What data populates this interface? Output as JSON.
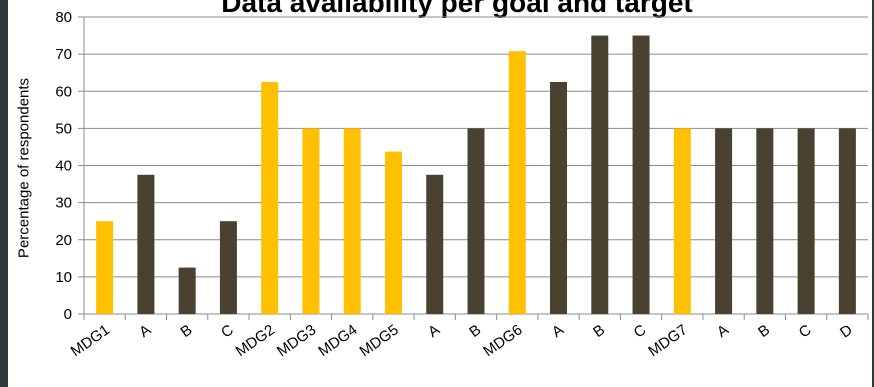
{
  "chart_data": {
    "type": "bar",
    "title": "Data availability per goal and target",
    "xlabel": "",
    "ylabel": "Percentage of respondents",
    "ylim": [
      0,
      80
    ],
    "yticks": [
      0,
      10,
      20,
      30,
      40,
      50,
      60,
      70,
      80
    ],
    "grid": true,
    "legend": "none",
    "categories": [
      "MDG1",
      "A",
      "B",
      "C",
      "MDG2",
      "MDG3",
      "MDG4",
      "MDG5",
      "A",
      "B",
      "MDG6",
      "A",
      "B",
      "C",
      "MDG7",
      "A",
      "B",
      "C",
      "D"
    ],
    "values": [
      25,
      37.5,
      12.5,
      25,
      62.5,
      50,
      50,
      43.75,
      37.5,
      50,
      70.8,
      62.5,
      75,
      75,
      50,
      50,
      50,
      50,
      50
    ],
    "bar_kinds": [
      "goal",
      "target",
      "target",
      "target",
      "goal",
      "goal",
      "goal",
      "goal",
      "target",
      "target",
      "goal",
      "target",
      "target",
      "target",
      "goal",
      "target",
      "target",
      "target",
      "target"
    ],
    "colors": {
      "goal": "#ffc000",
      "target": "#4a4230",
      "grid": "#8c8c8c",
      "axis": "#8c8c8c",
      "edge": "#2f3a3d"
    }
  }
}
